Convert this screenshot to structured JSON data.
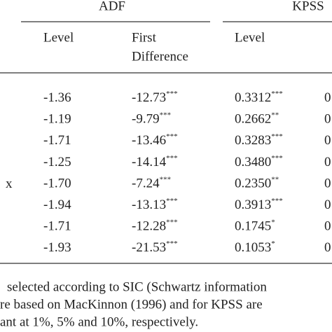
{
  "header": {
    "groups": [
      "ADF",
      "KPSS"
    ],
    "columns": [
      "Level",
      "First",
      "Difference",
      "Level"
    ]
  },
  "table": {
    "rows": [
      {
        "level": "-1.36",
        "first_difference": "-12.73",
        "first_difference_sig": "***",
        "kpss_level": "0.3312",
        "kpss_level_sig": "***",
        "clipped": "0"
      },
      {
        "level": "-1.19",
        "first_difference": "-9.79",
        "first_difference_sig": "***",
        "kpss_level": "0.2662",
        "kpss_level_sig": "**",
        "clipped": "0"
      },
      {
        "level": "-1.71",
        "first_difference": "-13.46",
        "first_difference_sig": "***",
        "kpss_level": "0.3283",
        "kpss_level_sig": "***",
        "clipped": "0"
      },
      {
        "level": "-1.25",
        "first_difference": "-14.14",
        "first_difference_sig": "***",
        "kpss_level": "0.3480",
        "kpss_level_sig": "***",
        "clipped": "0"
      },
      {
        "label": "x",
        "level": "-1.70",
        "first_difference": "-7.24",
        "first_difference_sig": "***",
        "kpss_level": "0.2350",
        "kpss_level_sig": "**",
        "clipped": "0"
      },
      {
        "level": "-1.94",
        "first_difference": "-13.13",
        "first_difference_sig": "***",
        "kpss_level": "0.3913",
        "kpss_level_sig": "***",
        "clipped": "0"
      },
      {
        "level": "-1.71",
        "first_difference": "-12.28",
        "first_difference_sig": "***",
        "kpss_level": "0.1745",
        "kpss_level_sig": "*",
        "clipped": "0"
      },
      {
        "level": "-1.93",
        "first_difference": "-21.53",
        "first_difference_sig": "***",
        "kpss_level": "0.1053",
        "kpss_level_sig": "*",
        "clipped": "0"
      }
    ]
  },
  "notes": [
    "selected according to SIC (Schwartz information",
    "re based on MacKinnon (1996) and for KPSS are",
    "ant at 1%, 5% and 10%, respectively."
  ]
}
